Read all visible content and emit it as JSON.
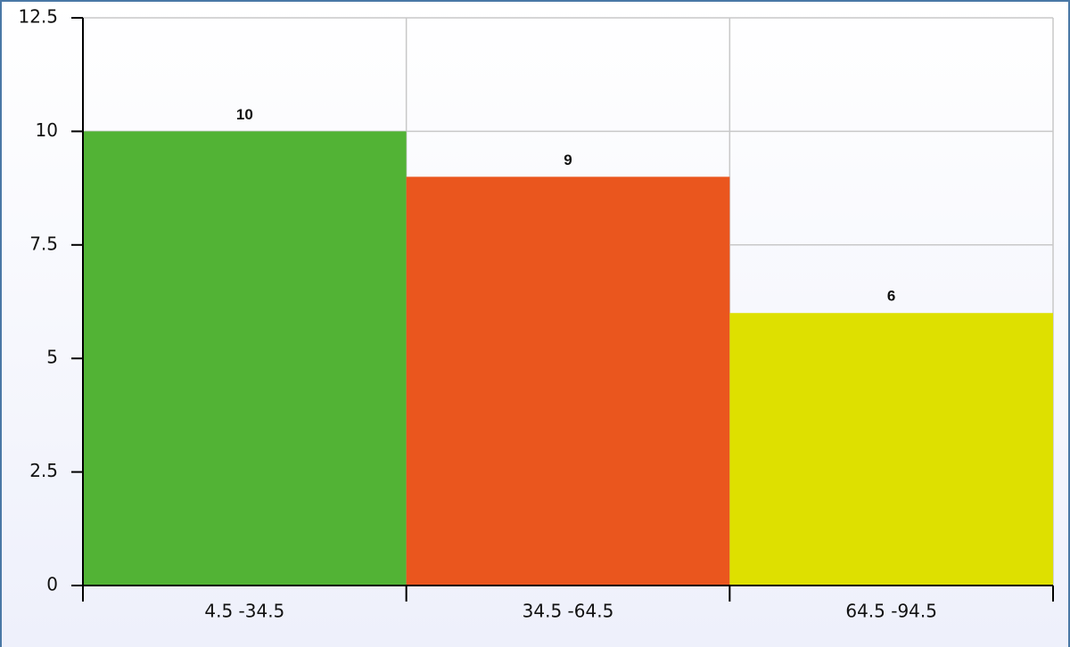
{
  "chart_data": {
    "type": "bar",
    "categories": [
      "4.5 -34.5",
      "34.5 -64.5",
      "64.5 -94.5"
    ],
    "values": [
      10,
      9,
      6
    ],
    "colors": [
      "#52b335",
      "#ea561e",
      "#dee000"
    ],
    "ylim": [
      0,
      12.5
    ],
    "yticks": [
      0,
      2.5,
      5,
      7.5,
      10,
      12.5
    ],
    "grid": true
  }
}
